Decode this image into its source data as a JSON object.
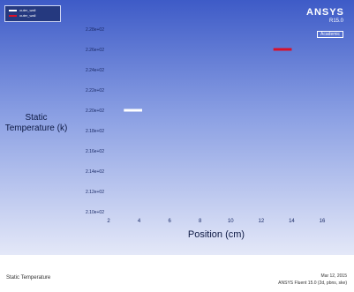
{
  "colors": {
    "background_top": "#3e5bc7",
    "background_bottom": "#e4e8f8",
    "series_0": "#ffffff",
    "series_1": "#d8102a"
  },
  "logo": {
    "text": "ANSYS",
    "version": "R15.0",
    "badge": "Academic"
  },
  "footer": {
    "left": "Static Temperature",
    "date": "Mar 12, 2015",
    "product": "ANSYS Fluent 15.0 (2d, pbns, ske)"
  },
  "chart_data": {
    "type": "scatter",
    "xlabel": "Position (cm)",
    "ylabel": "Static Temperature (k)",
    "xlim": [
      2,
      16
    ],
    "ylim": [
      0.021,
      0.0228
    ],
    "x_ticks": [
      "2",
      "4",
      "6",
      "8",
      "10",
      "12",
      "14",
      "16"
    ],
    "y_ticks": [
      "2.28e+02",
      "2.26e+02",
      "2.24e+02",
      "2.22e+02",
      "2.20e+02",
      "2.18e+02",
      "2.16e+02",
      "2.14e+02",
      "2.12e+02",
      "2.10e+02"
    ],
    "series": [
      {
        "name": "outer_wall",
        "color": "#ffffff",
        "x": [
          3.0,
          4.2
        ],
        "y": [
          0.022,
          0.022
        ]
      },
      {
        "name": "outer_wall",
        "color": "#d8102a",
        "x": [
          12.8,
          14.0
        ],
        "y": [
          0.0226,
          0.0226
        ]
      }
    ],
    "legend_position": "top-left"
  }
}
